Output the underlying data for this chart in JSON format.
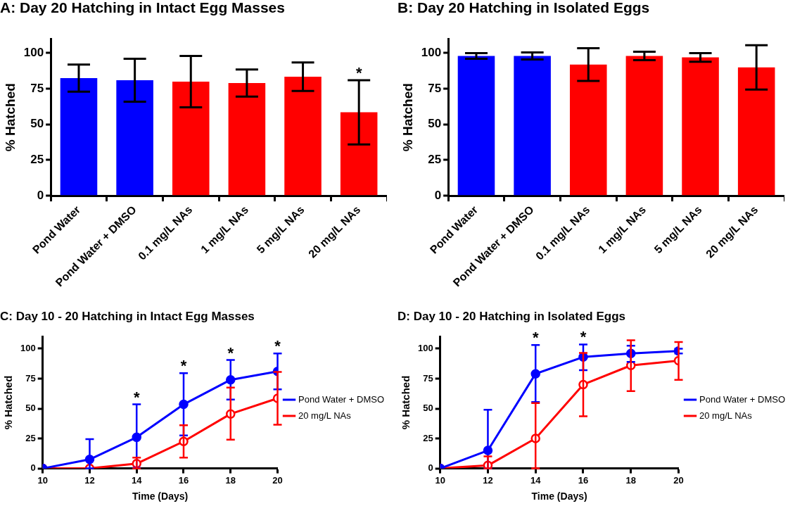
{
  "chart_data": [
    {
      "type": "bar",
      "title": "A: Day 20 Hatching in Intact Egg Masses",
      "ylabel": "% Hatched",
      "categories": [
        "Pond Water",
        "Pond Water + DMSO",
        "0.1 mg/L NAs",
        "1 mg/L NAs",
        "5 mg/L NAs",
        "20 mg/L NAs"
      ],
      "values": [
        82.5,
        81,
        80,
        79,
        83.5,
        58.5
      ],
      "errors": [
        9.5,
        15,
        18,
        9.5,
        10,
        22.5
      ],
      "colors": [
        "#0000ff",
        "#0000ff",
        "#ff0000",
        "#ff0000",
        "#ff0000",
        "#ff0000"
      ],
      "ylim": [
        0,
        110
      ],
      "yticks": [
        0,
        25,
        50,
        75,
        100
      ],
      "annotations": [
        {
          "text": "*",
          "x": "20 mg/L NAs",
          "y": 81
        }
      ]
    },
    {
      "type": "bar",
      "title": "B: Day 20 Hatching in Isolated Eggs",
      "ylabel": "% Hatched",
      "categories": [
        "Pond Water",
        "Pond Water + DMSO",
        "0.1 mg/L NAs",
        "1 mg/L NAs",
        "5 mg/L NAs",
        "20 mg/L NAs"
      ],
      "values": [
        98,
        98,
        92,
        98,
        97,
        90
      ],
      "errors": [
        2,
        2.5,
        11.5,
        3,
        3,
        15.5
      ],
      "colors": [
        "#0000ff",
        "#0000ff",
        "#ff0000",
        "#ff0000",
        "#ff0000",
        "#ff0000"
      ],
      "ylim": [
        0,
        110
      ],
      "yticks": [
        0,
        25,
        50,
        75,
        100
      ]
    },
    {
      "type": "line",
      "title": "C: Day 10 - 20 Hatching in Intact Egg Masses",
      "xlabel": "Time (Days)",
      "ylabel": "% Hatched",
      "x": [
        10,
        12,
        14,
        16,
        18,
        20
      ],
      "series": [
        {
          "name": "Pond Water + DMSO",
          "color": "#0000ff",
          "values": [
            0,
            7.5,
            26,
            53.5,
            74,
            81
          ],
          "errors": [
            null,
            [
              0,
              24.5
            ],
            [
              0.5,
              53.5
            ],
            [
              27.5,
              79.5
            ],
            [
              57.5,
              90.5
            ],
            [
              66,
              96
            ]
          ]
        },
        {
          "name": "20 mg/L NAs",
          "color": "#ff0000",
          "values": [
            0,
            0,
            4,
            22.5,
            45.5,
            58.5
          ],
          "errors": [
            null,
            null,
            [
              0,
              9
            ],
            [
              9,
              36
            ],
            [
              24,
              67.5
            ],
            [
              36.5,
              80.5
            ]
          ]
        }
      ],
      "xlim": [
        10,
        20
      ],
      "xticks": [
        10,
        12,
        14,
        16,
        18,
        20
      ],
      "ylim": [
        0,
        110
      ],
      "yticks": [
        0,
        25,
        50,
        75,
        100
      ],
      "marker": "circle",
      "legend": "right",
      "annotations": [
        {
          "text": "*",
          "x": 14,
          "y": 53.5
        },
        {
          "text": "*",
          "x": 16,
          "y": 79.5
        },
        {
          "text": "*",
          "x": 18,
          "y": 90.5
        },
        {
          "text": "*",
          "x": 20,
          "y": 96
        }
      ]
    },
    {
      "type": "line",
      "title": "D: Day 10 - 20 Hatching in Isolated Eggs",
      "xlabel": "Time (Days)",
      "ylabel": "% Hatched",
      "x": [
        10,
        12,
        14,
        16,
        18,
        20
      ],
      "series": [
        {
          "name": "Pond Water + DMSO",
          "color": "#0000ff",
          "values": [
            0,
            15,
            79,
            93,
            96,
            98
          ],
          "errors": [
            null,
            [
              0,
              49
            ],
            [
              55.5,
              103
            ],
            [
              82,
              103.5
            ],
            [
              89,
              102.5
            ],
            [
              96,
              100
            ]
          ]
        },
        {
          "name": "20 mg/L NAs",
          "color": "#ff0000",
          "values": [
            0,
            2.5,
            25,
            70,
            86,
            90
          ],
          "errors": [
            null,
            [
              0,
              10
            ],
            [
              0,
              54.5
            ],
            [
              43.5,
              96.5
            ],
            [
              64.5,
              107
            ],
            [
              74,
              105.5
            ]
          ]
        }
      ],
      "xlim": [
        10,
        20
      ],
      "xticks": [
        10,
        12,
        14,
        16,
        18,
        20
      ],
      "ylim": [
        0,
        110
      ],
      "yticks": [
        0,
        25,
        50,
        75,
        100
      ],
      "marker": "circle",
      "legend": "right",
      "annotations": [
        {
          "text": "*",
          "x": 14,
          "y": 103
        },
        {
          "text": "*",
          "x": 16,
          "y": 103.5
        }
      ]
    }
  ]
}
